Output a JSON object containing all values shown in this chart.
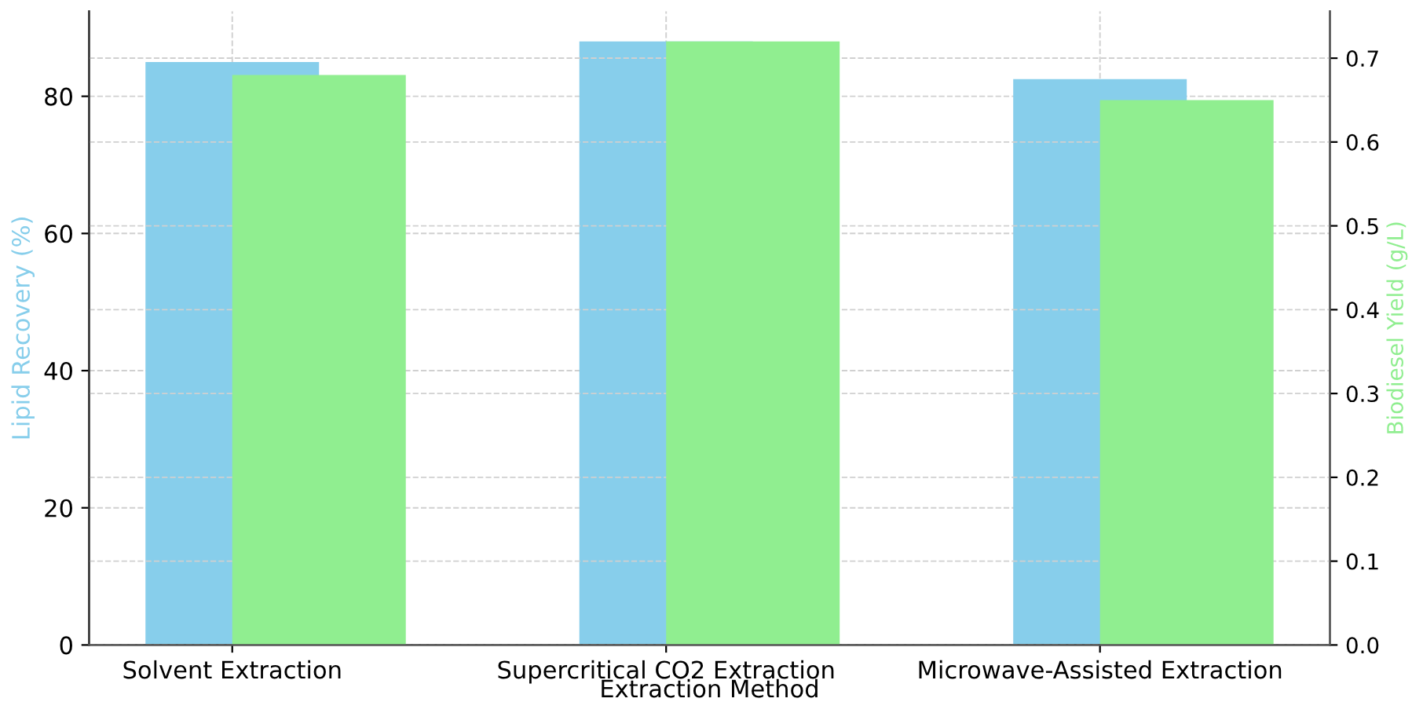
{
  "chart_data": {
    "type": "bar",
    "xlabel": "Extraction Method",
    "ylabel": "Lipid Recovery (%)",
    "y2label": "Biodiesel Yield (g/L)",
    "categories": [
      "Solvent Extraction",
      "Supercritical CO2 Extraction",
      "Microwave-Assisted Extraction"
    ],
    "series": [
      {
        "color": "#87ceeb",
        "values": [
          85,
          88,
          82.5
        ]
      },
      {
        "color": "#90ee90",
        "values": [
          0.68,
          0.72,
          0.65
        ],
        "axis": "y2"
      }
    ],
    "ylim": [
      0,
      92.4
    ],
    "yticks": [
      0,
      20,
      40,
      60,
      80
    ],
    "y2lim": [
      0,
      0.756
    ],
    "y2ticks": [
      {
        "value": 0,
        "label": "0.0"
      },
      0.1,
      0.2,
      0.3,
      0.4,
      0.5,
      0.6,
      0.7
    ],
    "grid": true,
    "legend": false
  }
}
